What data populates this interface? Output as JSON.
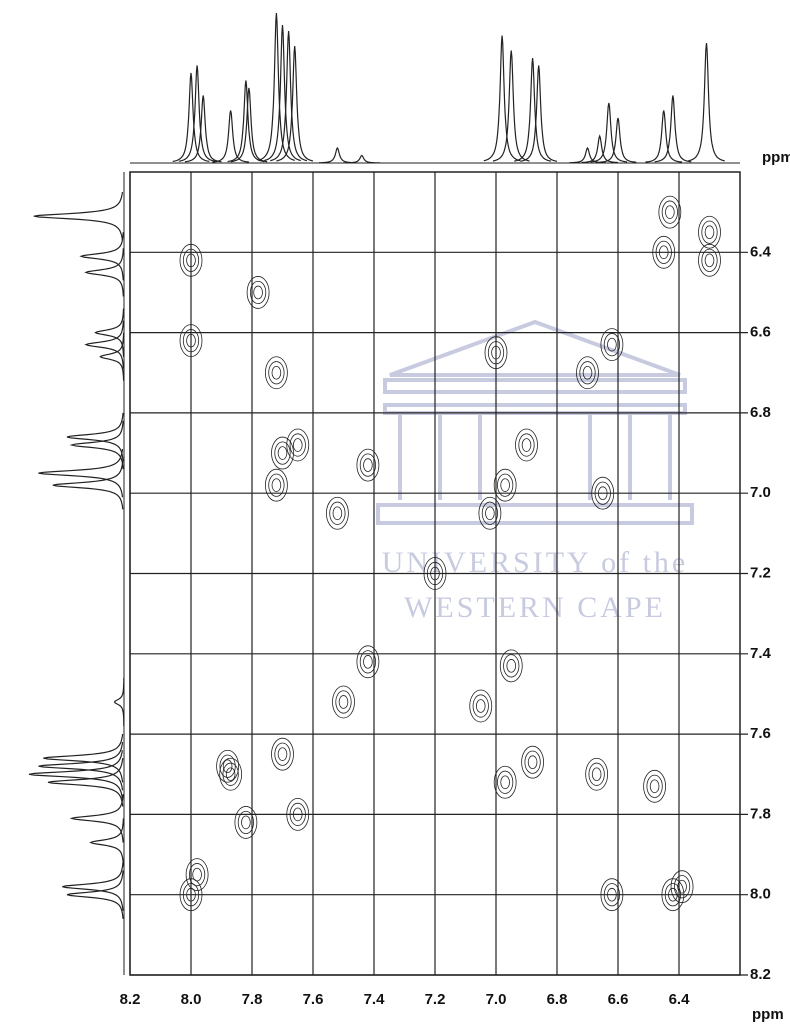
{
  "chart_data": {
    "type": "contour",
    "xlabel": "ppm",
    "ylabel": "ppm",
    "xlim": [
      8.2,
      6.2
    ],
    "ylim": [
      6.2,
      8.2
    ],
    "xticks": [
      8.2,
      {
        "value": 8.0,
        "label": "8.0"
      },
      7.8,
      7.6,
      7.4,
      7.2,
      {
        "value": 7.0,
        "label": "7.0"
      },
      6.8,
      6.6,
      6.4
    ],
    "yticks": [
      6.4,
      6.6,
      6.8,
      {
        "value": 7.0,
        "label": "7.0"
      },
      7.2,
      7.4,
      7.6,
      7.8,
      {
        "value": 8.0,
        "label": "8.0"
      },
      8.2
    ],
    "grid": true,
    "color": "#222222",
    "x": [
      8.0,
      8.0,
      7.78,
      7.72,
      7.7,
      7.72,
      7.65,
      7.42,
      7.52,
      7.0,
      6.97,
      6.9,
      7.02,
      6.65,
      6.62,
      6.7,
      6.45,
      6.3,
      6.43,
      6.3,
      7.2,
      7.42,
      7.5,
      7.05,
      6.95,
      6.97,
      6.88,
      6.67,
      6.48,
      7.88,
      7.82,
      7.7,
      7.65,
      7.87,
      8.0,
      7.98,
      6.62,
      6.42,
      6.39
    ],
    "values": [
      6.42,
      6.62,
      6.5,
      6.7,
      6.9,
      6.98,
      6.88,
      6.93,
      7.05,
      6.65,
      6.98,
      6.88,
      7.05,
      7.0,
      6.63,
      6.7,
      6.4,
      6.35,
      6.3,
      6.42,
      7.2,
      7.42,
      7.52,
      7.53,
      7.43,
      7.72,
      7.67,
      7.7,
      7.73,
      7.68,
      7.82,
      7.65,
      7.8,
      7.7,
      8.0,
      7.95,
      8.0,
      8.0,
      7.98
    ],
    "top_projection": {
      "x": [
        8.0,
        7.98,
        7.96,
        7.87,
        7.82,
        7.81,
        7.72,
        7.7,
        7.68,
        7.66,
        7.52,
        7.44,
        6.98,
        6.95,
        6.88,
        6.86,
        6.7,
        6.66,
        6.63,
        6.6,
        6.45,
        6.42,
        6.31
      ],
      "values": [
        60,
        65,
        45,
        35,
        55,
        50,
        100,
        92,
        88,
        78,
        10,
        5,
        85,
        75,
        70,
        65,
        10,
        18,
        40,
        30,
        35,
        45,
        80
      ]
    },
    "left_projection": {
      "x": [
        6.31,
        6.41,
        6.45,
        6.6,
        6.63,
        6.66,
        6.86,
        6.88,
        6.95,
        6.98,
        7.52,
        7.66,
        7.68,
        7.7,
        7.72,
        7.81,
        7.87,
        7.98,
        8.0
      ],
      "values": [
        95,
        45,
        40,
        30,
        40,
        25,
        60,
        55,
        90,
        75,
        10,
        85,
        90,
        100,
        80,
        55,
        35,
        65,
        60
      ]
    },
    "watermark": [
      "UNIVERSITY of the",
      "WESTERN CAPE"
    ]
  }
}
